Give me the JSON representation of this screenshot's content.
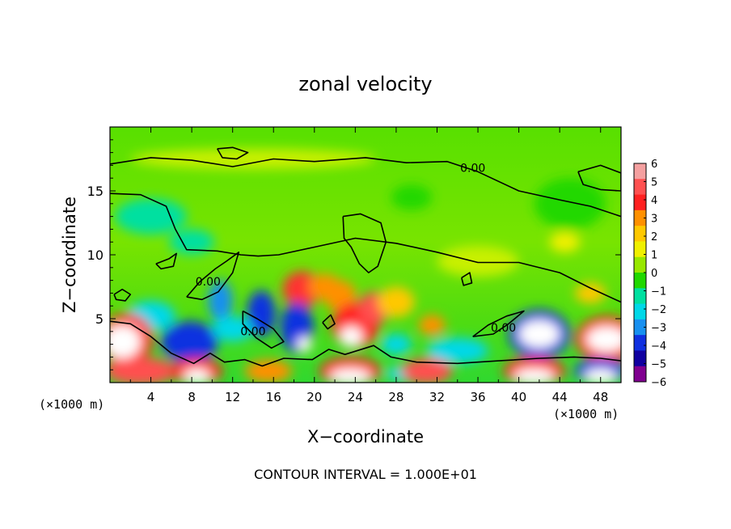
{
  "chart_data": {
    "type": "heatmap",
    "title": "zonal velocity",
    "xlabel": "X−coordinate",
    "ylabel": "Z−coordinate",
    "x_unit_left": "(×1000 m)",
    "x_unit_right": "(×1000 m)",
    "footer": "CONTOUR INTERVAL = 1.000E+01",
    "xlim": [
      0,
      50
    ],
    "ylim": [
      0,
      20
    ],
    "x_ticks": [
      4,
      8,
      12,
      16,
      20,
      24,
      28,
      32,
      36,
      40,
      44,
      48
    ],
    "x_tick_labels": [
      "4",
      "8",
      "12",
      "16",
      "20",
      "24",
      "28",
      "32",
      "36",
      "40",
      "44",
      "48"
    ],
    "y_ticks": [
      5,
      10,
      15
    ],
    "y_tick_labels": [
      "5",
      "10",
      "15"
    ],
    "contour_labels": [
      {
        "text": "0.00",
        "x": 35.5,
        "y": 16.5
      },
      {
        "text": "0.00",
        "x": 9.6,
        "y": 7.6
      },
      {
        "text": "0.00",
        "x": 14.0,
        "y": 3.7
      },
      {
        "text": "0.00",
        "x": 38.5,
        "y": 4.0
      }
    ],
    "colorbar": {
      "levels": [
        "6",
        "5",
        "4",
        "3",
        "2",
        "1",
        "0",
        "−1",
        "−2",
        "−3",
        "−4",
        "−5",
        "−6"
      ],
      "colors": [
        "#f4a0a0",
        "#ff5050",
        "#ff2020",
        "#ff9000",
        "#ffc800",
        "#f0f000",
        "#98e800",
        "#20d800",
        "#00e0a0",
        "#00d8e8",
        "#1890f0",
        "#1030e0",
        "#1000a0",
        "#800090"
      ]
    },
    "blobs": [
      {
        "x": 18.8,
        "y": 7.3,
        "rx": 1.9,
        "ry": 1.4,
        "color": "#ff3030"
      },
      {
        "x": 21.0,
        "y": 7.5,
        "rx": 1.6,
        "ry": 1.0,
        "color": "#ff9000"
      },
      {
        "x": 22.5,
        "y": 6.8,
        "rx": 1.6,
        "ry": 1.2,
        "color": "#ff9000"
      },
      {
        "x": 24.0,
        "y": 4.5,
        "rx": 2.3,
        "ry": 1.8,
        "color": "#ff2020"
      },
      {
        "x": 23.6,
        "y": 3.6,
        "rx": 1.1,
        "ry": 0.8,
        "color": "#ffffff"
      },
      {
        "x": 25.8,
        "y": 5.8,
        "rx": 1.5,
        "ry": 1.3,
        "color": "#ff5050"
      },
      {
        "x": 28.0,
        "y": 6.3,
        "rx": 1.8,
        "ry": 1.2,
        "color": "#ffc800"
      },
      {
        "x": 31.5,
        "y": 4.5,
        "rx": 1.3,
        "ry": 0.8,
        "color": "#ff9000"
      },
      {
        "x": 10.8,
        "y": 6.4,
        "rx": 1.2,
        "ry": 1.6,
        "color": "#1890f0"
      },
      {
        "x": 14.8,
        "y": 5.4,
        "rx": 1.4,
        "ry": 1.8,
        "color": "#1030e0"
      },
      {
        "x": 18.3,
        "y": 4.3,
        "rx": 1.6,
        "ry": 2.0,
        "color": "#1030e0"
      },
      {
        "x": 19.0,
        "y": 3.0,
        "rx": 0.7,
        "ry": 0.6,
        "color": "#ffffff"
      },
      {
        "x": 7.8,
        "y": 3.2,
        "rx": 2.8,
        "ry": 1.6,
        "color": "#1030e0"
      },
      {
        "x": 4.0,
        "y": 5.2,
        "rx": 2.4,
        "ry": 1.2,
        "color": "#00d8e8"
      },
      {
        "x": 12.0,
        "y": 4.2,
        "rx": 2.0,
        "ry": 1.0,
        "color": "#00d8e8"
      },
      {
        "x": 34.0,
        "y": 2.5,
        "rx": 3.0,
        "ry": 1.0,
        "color": "#00d8e8"
      },
      {
        "x": 28.0,
        "y": 3.0,
        "rx": 1.5,
        "ry": 0.8,
        "color": "#00d8e8"
      },
      {
        "x": 42.0,
        "y": 3.8,
        "rx": 3.0,
        "ry": 1.9,
        "color": "#1030e0"
      },
      {
        "x": 42.0,
        "y": 3.8,
        "rx": 2.0,
        "ry": 1.1,
        "color": "#ffffff"
      },
      {
        "x": 48.6,
        "y": 3.4,
        "rx": 3.0,
        "ry": 1.8,
        "color": "#ff2020"
      },
      {
        "x": 48.6,
        "y": 3.4,
        "rx": 2.0,
        "ry": 1.0,
        "color": "#ffffff"
      },
      {
        "x": 1.6,
        "y": 3.4,
        "rx": 2.6,
        "ry": 2.0,
        "color": "#ff2020"
      },
      {
        "x": 1.2,
        "y": 3.2,
        "rx": 1.8,
        "ry": 1.3,
        "color": "#ffffff"
      },
      {
        "x": 3.0,
        "y": 0.9,
        "rx": 3.5,
        "ry": 1.1,
        "color": "#ff5050"
      },
      {
        "x": 8.5,
        "y": 0.9,
        "rx": 2.5,
        "ry": 1.0,
        "color": "#ff2020"
      },
      {
        "x": 8.5,
        "y": 0.5,
        "rx": 1.3,
        "ry": 0.6,
        "color": "#ffffff"
      },
      {
        "x": 15.5,
        "y": 0.9,
        "rx": 2.3,
        "ry": 0.9,
        "color": "#ff9000"
      },
      {
        "x": 23.5,
        "y": 0.9,
        "rx": 3.0,
        "ry": 1.1,
        "color": "#ff2020"
      },
      {
        "x": 23.5,
        "y": 0.5,
        "rx": 2.0,
        "ry": 0.6,
        "color": "#ffffff"
      },
      {
        "x": 29.0,
        "y": 0.7,
        "rx": 2.0,
        "ry": 0.6,
        "color": "#00d8e8"
      },
      {
        "x": 31.0,
        "y": 0.9,
        "rx": 2.5,
        "ry": 1.0,
        "color": "#ff5050"
      },
      {
        "x": 41.5,
        "y": 0.9,
        "rx": 3.0,
        "ry": 1.1,
        "color": "#ff2020"
      },
      {
        "x": 41.5,
        "y": 0.5,
        "rx": 2.0,
        "ry": 0.6,
        "color": "#ffffff"
      },
      {
        "x": 48.0,
        "y": 0.9,
        "rx": 2.5,
        "ry": 1.0,
        "color": "#1030e0"
      },
      {
        "x": 48.0,
        "y": 0.5,
        "rx": 1.6,
        "ry": 0.6,
        "color": "#ffffff"
      },
      {
        "x": 4.0,
        "y": 13.0,
        "rx": 3.5,
        "ry": 1.4,
        "color": "#00e0a0"
      },
      {
        "x": 8.0,
        "y": 11.0,
        "rx": 2.2,
        "ry": 1.0,
        "color": "#00e0a0"
      },
      {
        "x": 29.5,
        "y": 14.5,
        "rx": 2.0,
        "ry": 1.0,
        "color": "#20d800"
      },
      {
        "x": 45.0,
        "y": 14.0,
        "rx": 3.5,
        "ry": 2.0,
        "color": "#20d800"
      },
      {
        "x": 44.5,
        "y": 11.0,
        "rx": 1.5,
        "ry": 0.8,
        "color": "#f0f000"
      },
      {
        "x": 36.0,
        "y": 9.5,
        "rx": 4.0,
        "ry": 1.2,
        "color": "#c8f000"
      },
      {
        "x": 47.0,
        "y": 7.0,
        "rx": 1.5,
        "ry": 0.8,
        "color": "#ffc800"
      },
      {
        "x": 14.0,
        "y": 17.5,
        "rx": 12.0,
        "ry": 0.8,
        "color": "#c8f000"
      }
    ],
    "contours": [
      [
        [
          0,
          17.1
        ],
        [
          4,
          17.6
        ],
        [
          8,
          17.4
        ],
        [
          12,
          16.9
        ],
        [
          16,
          17.5
        ],
        [
          20,
          17.3
        ],
        [
          25,
          17.6
        ],
        [
          29,
          17.2
        ],
        [
          33,
          17.3
        ],
        [
          36,
          16.5
        ],
        [
          40,
          15.0
        ],
        [
          44,
          14.3
        ],
        [
          47,
          13.8
        ],
        [
          50,
          13.0
        ]
      ],
      [
        [
          0,
          14.8
        ],
        [
          3,
          14.7
        ],
        [
          5.5,
          13.8
        ],
        [
          6.4,
          12.0
        ],
        [
          7.5,
          10.4
        ],
        [
          10.5,
          10.3
        ],
        [
          12.8,
          10.0
        ],
        [
          14.5,
          9.9
        ],
        [
          16.5,
          10.0
        ],
        [
          20,
          10.6
        ],
        [
          24,
          11.3
        ],
        [
          28,
          10.9
        ],
        [
          32,
          10.2
        ],
        [
          36,
          9.4
        ],
        [
          40,
          9.4
        ],
        [
          44,
          8.6
        ],
        [
          47,
          7.4
        ],
        [
          50,
          6.3
        ]
      ],
      [
        [
          0,
          4.8
        ],
        [
          2,
          4.6
        ],
        [
          4,
          3.6
        ],
        [
          6,
          2.3
        ],
        [
          8.2,
          1.5
        ],
        [
          9.8,
          2.3
        ],
        [
          11.2,
          1.6
        ],
        [
          13.2,
          1.8
        ],
        [
          14.9,
          1.3
        ],
        [
          17,
          1.9
        ],
        [
          19.8,
          1.8
        ],
        [
          21.4,
          2.6
        ],
        [
          23,
          2.2
        ],
        [
          25.8,
          2.9
        ],
        [
          27.5,
          2.0
        ],
        [
          30,
          1.6
        ],
        [
          34,
          1.5
        ],
        [
          38,
          1.7
        ],
        [
          42,
          1.9
        ],
        [
          45.4,
          2.0
        ],
        [
          48,
          1.9
        ],
        [
          50,
          1.7
        ]
      ],
      [
        [
          22.8,
          13.0
        ],
        [
          24.5,
          13.2
        ],
        [
          26.5,
          12.5
        ],
        [
          27.0,
          11.0
        ],
        [
          26.2,
          9.1
        ],
        [
          25.3,
          8.6
        ],
        [
          24.4,
          9.3
        ],
        [
          23.6,
          10.6
        ],
        [
          22.9,
          11.3
        ],
        [
          22.8,
          13.0
        ]
      ],
      [
        [
          10.5,
          18.3
        ],
        [
          12.0,
          18.4
        ],
        [
          13.5,
          18.0
        ],
        [
          12.4,
          17.5
        ],
        [
          11.0,
          17.6
        ],
        [
          10.5,
          18.3
        ]
      ],
      [
        [
          45.8,
          16.5
        ],
        [
          48.0,
          17.0
        ],
        [
          50,
          16.4
        ],
        [
          50,
          15.0
        ],
        [
          48.0,
          15.1
        ],
        [
          46.3,
          15.5
        ],
        [
          45.8,
          16.5
        ]
      ],
      [
        [
          4.5,
          9.3
        ],
        [
          5.8,
          9.7
        ],
        [
          6.5,
          10.1
        ],
        [
          6.2,
          9.1
        ],
        [
          5.0,
          8.9
        ],
        [
          4.5,
          9.3
        ]
      ],
      [
        [
          34.4,
          8.2
        ],
        [
          35.2,
          8.6
        ],
        [
          35.4,
          7.8
        ],
        [
          34.6,
          7.6
        ],
        [
          34.4,
          8.2
        ]
      ],
      [
        [
          0.4,
          6.9
        ],
        [
          1.2,
          7.3
        ],
        [
          2.0,
          6.9
        ],
        [
          1.5,
          6.4
        ],
        [
          0.6,
          6.5
        ],
        [
          0.4,
          6.9
        ]
      ],
      [
        [
          7.5,
          6.7
        ],
        [
          8.8,
          7.9
        ],
        [
          10.3,
          8.9
        ],
        [
          11.4,
          9.5
        ],
        [
          12.6,
          10.2
        ],
        [
          12.0,
          8.6
        ],
        [
          10.6,
          7.1
        ],
        [
          9.0,
          6.5
        ],
        [
          7.5,
          6.7
        ]
      ],
      [
        [
          13.0,
          5.6
        ],
        [
          14.4,
          5.0
        ],
        [
          16.0,
          4.2
        ],
        [
          17.0,
          3.2
        ],
        [
          15.8,
          2.7
        ],
        [
          14.3,
          3.5
        ],
        [
          13.0,
          4.6
        ],
        [
          13.0,
          5.6
        ]
      ],
      [
        [
          35.5,
          3.6
        ],
        [
          37.0,
          4.5
        ],
        [
          38.8,
          5.2
        ],
        [
          40.5,
          5.6
        ],
        [
          39.0,
          4.6
        ],
        [
          37.5,
          3.8
        ],
        [
          35.5,
          3.6
        ]
      ],
      [
        [
          20.8,
          4.7
        ],
        [
          21.6,
          5.3
        ],
        [
          22.0,
          4.6
        ],
        [
          21.3,
          4.2
        ],
        [
          20.8,
          4.7
        ]
      ]
    ]
  }
}
